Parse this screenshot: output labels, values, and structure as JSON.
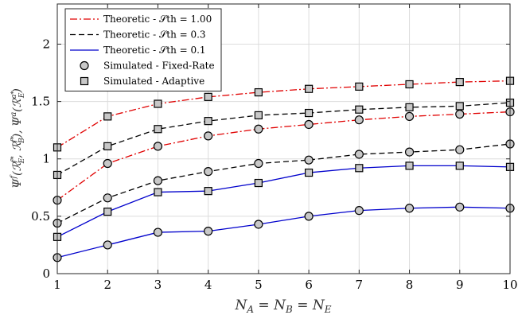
{
  "chart_data": {
    "type": "line",
    "xlabel": "N_A = N_B = N_E",
    "ylabel": "Ψ^f(R_E^{f*}, R_B^{f*}), Ψ^a(R_E^{a*})",
    "x": [
      1,
      2,
      3,
      4,
      5,
      6,
      7,
      8,
      9,
      10
    ],
    "xlim": [
      1,
      10
    ],
    "ylim": [
      0,
      2.35
    ],
    "x_ticks": [
      "1",
      "2",
      "3",
      "4",
      "5",
      "6",
      "7",
      "8",
      "9",
      "10"
    ],
    "y_ticks": [
      "0",
      "0.5",
      "1",
      "1.5",
      "2"
    ],
    "y_tick_values": [
      0,
      0.5,
      1,
      1.5,
      2
    ],
    "grid": true,
    "legend_position": "top-left",
    "legend": [
      {
        "text": "Theoretic - 𝒮th = 1.00",
        "color": "#e00000",
        "dash": "dashdot",
        "marker": "none"
      },
      {
        "text": "Theoretic - 𝒮th = 0.3",
        "color": "#000000",
        "dash": "dashed",
        "marker": "none"
      },
      {
        "text": "Theoretic - 𝒮th = 0.1",
        "color": "#0000cc",
        "dash": "solid",
        "marker": "none"
      },
      {
        "text": "Simulated - Fixed-Rate",
        "color": "#000000",
        "dash": "none",
        "marker": "circle"
      },
      {
        "text": "Simulated - Adaptive",
        "color": "#000000",
        "dash": "none",
        "marker": "square"
      }
    ],
    "series": [
      {
        "group": "S=1.00",
        "scheme": "adaptive",
        "color": "#e00000",
        "dash": "dashdot",
        "marker": "square",
        "values": [
          1.1,
          1.37,
          1.48,
          1.54,
          1.58,
          1.61,
          1.63,
          1.65,
          1.67,
          1.68
        ]
      },
      {
        "group": "S=1.00",
        "scheme": "fixed-rate",
        "color": "#e00000",
        "dash": "dashdot",
        "marker": "circle",
        "values": [
          0.64,
          0.96,
          1.11,
          1.2,
          1.26,
          1.3,
          1.34,
          1.37,
          1.39,
          1.41
        ]
      },
      {
        "group": "S=0.3",
        "scheme": "adaptive",
        "color": "#000000",
        "dash": "dashed",
        "marker": "square",
        "values": [
          0.86,
          1.11,
          1.26,
          1.33,
          1.38,
          1.4,
          1.43,
          1.45,
          1.46,
          1.49
        ]
      },
      {
        "group": "S=0.3",
        "scheme": "fixed-rate",
        "color": "#000000",
        "dash": "dashed",
        "marker": "circle",
        "values": [
          0.44,
          0.66,
          0.81,
          0.89,
          0.96,
          0.99,
          1.04,
          1.06,
          1.08,
          1.13
        ]
      },
      {
        "group": "S=0.1",
        "scheme": "adaptive",
        "color": "#0000cc",
        "dash": "solid",
        "marker": "square",
        "values": [
          0.32,
          0.54,
          0.71,
          0.72,
          0.79,
          0.88,
          0.92,
          0.94,
          0.94,
          0.93
        ]
      },
      {
        "group": "S=0.1",
        "scheme": "fixed-rate",
        "color": "#0000cc",
        "dash": "solid",
        "marker": "circle",
        "values": [
          0.14,
          0.25,
          0.36,
          0.37,
          0.43,
          0.5,
          0.55,
          0.57,
          0.58,
          0.57
        ]
      }
    ]
  }
}
